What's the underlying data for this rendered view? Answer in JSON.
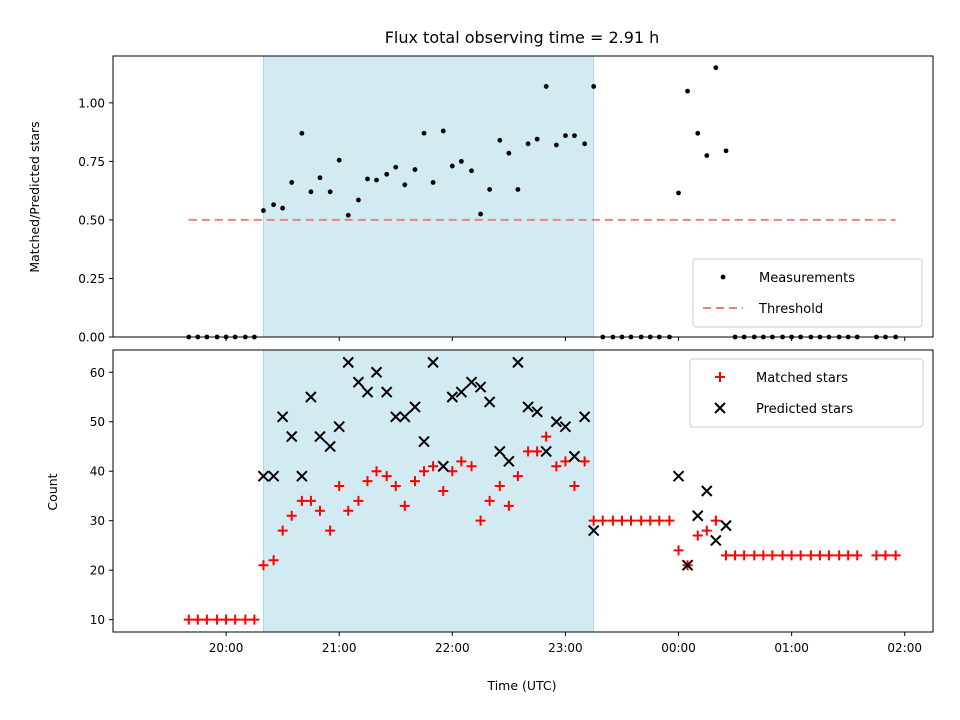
{
  "chart_data": {
    "title": "Flux total observing time = 2.91 h",
    "xlabel": "Time (UTC)",
    "x_ticks": [
      {
        "label": "20:00",
        "value": 20.0
      },
      {
        "label": "21:00",
        "value": 21.0
      },
      {
        "label": "22:00",
        "value": 22.0
      },
      {
        "label": "23:00",
        "value": 23.0
      },
      {
        "label": "00:00",
        "value": 24.0
      },
      {
        "label": "01:00",
        "value": 25.0
      },
      {
        "label": "02:00",
        "value": 26.0
      }
    ],
    "xlim": [
      19.0,
      26.25
    ],
    "shaded_span": {
      "x0": 20.33,
      "x1": 23.25,
      "color": "#add8e6"
    },
    "panels": [
      {
        "type": "scatter",
        "ylabel": "Matched/Predicted stars",
        "ylim": [
          0,
          1.2
        ],
        "yticks": [
          "0.00",
          "0.25",
          "0.50",
          "0.75",
          "1.00"
        ],
        "threshold": {
          "name": "Threshold",
          "y": 0.5,
          "x_range": [
            19.67,
            25.92
          ],
          "color": "#f08080"
        },
        "legend": {
          "position": "lower right",
          "entries": [
            "Measurements",
            "Threshold"
          ]
        },
        "series": [
          {
            "name": "Measurements",
            "color": "#000000",
            "marker": "dot",
            "x": [
              19.67,
              19.75,
              19.83,
              19.92,
              20.0,
              20.08,
              20.17,
              20.25,
              20.33,
              20.42,
              20.5,
              20.58,
              20.67,
              20.75,
              20.83,
              20.92,
              21.0,
              21.08,
              21.17,
              21.25,
              21.33,
              21.42,
              21.5,
              21.58,
              21.67,
              21.75,
              21.83,
              21.92,
              22.0,
              22.08,
              22.17,
              22.25,
              22.33,
              22.42,
              22.5,
              22.58,
              22.67,
              22.75,
              22.83,
              22.92,
              23.0,
              23.08,
              23.17,
              23.25,
              23.33,
              23.42,
              23.5,
              23.58,
              23.67,
              23.75,
              23.83,
              23.92,
              24.0,
              24.08,
              24.17,
              24.25,
              24.33,
              24.42,
              24.5,
              24.58,
              24.67,
              24.75,
              24.83,
              24.92,
              25.0,
              25.08,
              25.17,
              25.25,
              25.33,
              25.42,
              25.5,
              25.58,
              25.75,
              25.83,
              25.92
            ],
            "y": [
              0,
              0,
              0,
              0,
              0,
              0,
              0,
              0,
              0.54,
              0.565,
              0.55,
              0.66,
              0.87,
              0.62,
              0.68,
              0.62,
              0.755,
              0.52,
              0.585,
              0.675,
              0.67,
              0.695,
              0.725,
              0.65,
              0.715,
              0.87,
              0.66,
              0.88,
              0.73,
              0.75,
              0.71,
              0.525,
              0.63,
              0.84,
              0.785,
              0.63,
              0.825,
              0.845,
              1.07,
              0.82,
              0.86,
              0.86,
              0.825,
              1.07,
              0,
              0,
              0,
              0,
              0,
              0,
              0,
              0,
              0.615,
              1.05,
              0.87,
              0.775,
              1.15,
              0.795,
              0,
              0,
              0,
              0,
              0,
              0,
              0,
              0,
              0,
              0,
              0,
              0,
              0,
              0,
              0,
              0,
              0
            ]
          }
        ]
      },
      {
        "type": "scatter",
        "ylabel": "Count",
        "ylim": [
          7.5,
          64.5
        ],
        "yticks": [
          "10",
          "20",
          "30",
          "40",
          "50",
          "60"
        ],
        "legend": {
          "position": "upper right",
          "entries": [
            "Matched stars",
            "Predicted stars"
          ]
        },
        "series": [
          {
            "name": "Matched stars",
            "color": "#ff0000",
            "marker": "plus",
            "x": [
              19.67,
              19.75,
              19.83,
              19.92,
              20.0,
              20.08,
              20.17,
              20.25,
              20.33,
              20.42,
              20.5,
              20.58,
              20.67,
              20.75,
              20.83,
              20.92,
              21.0,
              21.08,
              21.17,
              21.25,
              21.33,
              21.42,
              21.5,
              21.58,
              21.67,
              21.75,
              21.83,
              21.92,
              22.0,
              22.08,
              22.17,
              22.25,
              22.33,
              22.42,
              22.5,
              22.58,
              22.67,
              22.75,
              22.83,
              22.92,
              23.0,
              23.08,
              23.17,
              23.25,
              23.33,
              23.42,
              23.5,
              23.58,
              23.67,
              23.75,
              23.83,
              23.92,
              24.0,
              24.08,
              24.17,
              24.25,
              24.33,
              24.42,
              24.5,
              24.58,
              24.67,
              24.75,
              24.83,
              24.92,
              25.0,
              25.08,
              25.17,
              25.25,
              25.33,
              25.42,
              25.5,
              25.58,
              25.75,
              25.83,
              25.92
            ],
            "y": [
              10,
              10,
              10,
              10,
              10,
              10,
              10,
              10,
              21,
              22,
              28,
              31,
              34,
              34,
              32,
              28,
              37,
              32,
              34,
              38,
              40,
              39,
              37,
              33,
              38,
              40,
              41,
              36,
              40,
              42,
              41,
              30,
              34,
              37,
              33,
              39,
              44,
              44,
              47,
              41,
              42,
              37,
              42,
              30,
              30,
              30,
              30,
              30,
              30,
              30,
              30,
              30,
              24,
              21,
              27,
              28,
              30,
              23,
              23,
              23,
              23,
              23,
              23,
              23,
              23,
              23,
              23,
              23,
              23,
              23,
              23,
              23,
              23,
              23,
              23
            ]
          },
          {
            "name": "Predicted stars",
            "color": "#000000",
            "marker": "x",
            "x": [
              20.33,
              20.42,
              20.5,
              20.58,
              20.67,
              20.75,
              20.83,
              20.92,
              21.0,
              21.08,
              21.17,
              21.25,
              21.33,
              21.42,
              21.5,
              21.58,
              21.67,
              21.75,
              21.83,
              21.92,
              22.0,
              22.08,
              22.17,
              22.25,
              22.33,
              22.42,
              22.5,
              22.58,
              22.67,
              22.75,
              22.83,
              22.92,
              23.0,
              23.08,
              23.17,
              23.25,
              24.0,
              24.08,
              24.17,
              24.25,
              24.33,
              24.42
            ],
            "y": [
              39,
              39,
              51,
              47,
              39,
              55,
              47,
              45,
              49,
              62,
              58,
              56,
              60,
              56,
              51,
              51,
              53,
              46,
              62,
              41,
              55,
              56,
              58,
              57,
              54,
              44,
              42,
              62,
              53,
              52,
              44,
              50,
              49,
              43,
              51,
              28,
              39,
              21,
              31,
              36,
              26,
              29
            ]
          }
        ]
      }
    ]
  }
}
